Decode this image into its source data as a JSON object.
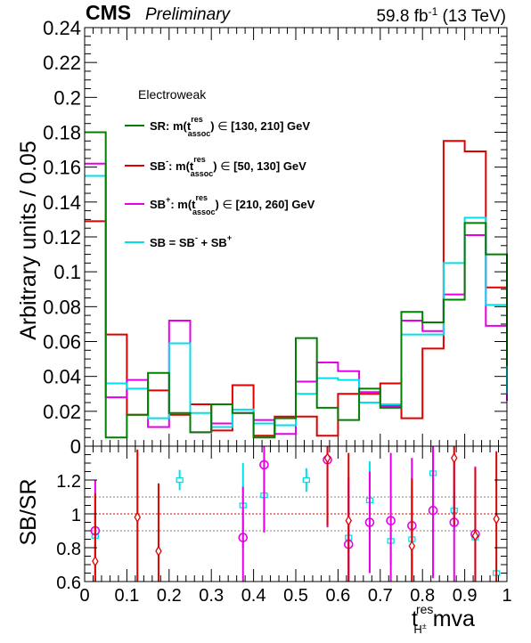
{
  "header": {
    "experiment": "CMS",
    "status": "Preliminary",
    "lumi_prefix": "59.8 fb",
    "lumi_exp": "-1",
    "lumi_suffix": " (13 TeV)"
  },
  "legend": {
    "title": "Electroweak",
    "sr": {
      "a": "SR: m(t",
      "sup": "res",
      "sub": "assoc",
      "b": ") ",
      "in": "∈",
      "c": " [130, 210] GeV"
    },
    "sbm": {
      "a": "SB",
      "asup": "-",
      "b": ": m(t",
      "sup": "res",
      "sub": "assoc",
      "c": ") ",
      "in": "∈",
      "d": " [50, 130] GeV"
    },
    "sbp": {
      "a": "SB",
      "asup": "+",
      "b": ": m(t",
      "sup": "res",
      "sub": "assoc",
      "c": ") ",
      "in": "∈",
      "d": " [210, 260] GeV"
    },
    "sb": {
      "a": "SB = SB",
      "asup": "-",
      "b": " + SB",
      "bsup": "+"
    }
  },
  "colors": {
    "SR": "#008000",
    "SBm": "#e00000",
    "SBp": "#e600e6",
    "SB": "#00e0e8"
  },
  "chart_data": [
    {
      "type": "line",
      "drawstyle": "steps",
      "ylabel": "Arbitrary units / 0.05",
      "xlim": [
        0,
        1
      ],
      "ylim": [
        0,
        0.24
      ],
      "yticks": [
        "0",
        "0.02",
        "0.04",
        "0.06",
        "0.08",
        "0.1",
        "0.12",
        "0.14",
        "0.16",
        "0.18",
        "0.2",
        "0.22",
        "0.24"
      ],
      "bin_edges": [
        0,
        0.05,
        0.1,
        0.15,
        0.2,
        0.25,
        0.3,
        0.35,
        0.4,
        0.45,
        0.5,
        0.55,
        0.6,
        0.65,
        0.7,
        0.75,
        0.8,
        0.85,
        0.9,
        0.95,
        1.0
      ],
      "series": [
        {
          "name": "SR",
          "values": [
            0.18,
            0.005,
            0.018,
            0.042,
            0.019,
            0.008,
            0.024,
            0.019,
            0.005,
            0.016,
            0.062,
            0.022,
            0.015,
            0.033,
            0.022,
            0.077,
            0.071,
            0.084,
            0.128,
            0.11,
            0.046
          ]
        },
        {
          "name": "SB-",
          "values": [
            0.129,
            0.064,
            0.018,
            0.032,
            0.018,
            0.024,
            0.009,
            0.035,
            0.006,
            0.017,
            0.017,
            0.006,
            0.03,
            0.03,
            0.036,
            0.016,
            0.056,
            0.175,
            0.169,
            0.091,
            0.045
          ]
        },
        {
          "name": "SB+",
          "values": [
            0.162,
            0.028,
            0.038,
            0.011,
            0.072,
            0.008,
            0.013,
            0.019,
            0.015,
            0.007,
            0.037,
            0.048,
            0.043,
            0.031,
            0.023,
            0.072,
            0.066,
            0.087,
            0.121,
            0.069,
            0.026
          ]
        },
        {
          "name": "SB = SB- + SB+",
          "values": [
            0.155,
            0.036,
            0.033,
            0.016,
            0.059,
            0.019,
            0.011,
            0.021,
            0.013,
            0.012,
            0.03,
            0.039,
            0.038,
            0.025,
            0.024,
            0.064,
            0.064,
            0.105,
            0.131,
            0.081,
            0.03
          ]
        }
      ]
    },
    {
      "type": "scatter",
      "ylabel": "SB/SR",
      "xlabel": "t_H±^res mva",
      "xlabel_parts": {
        "main": "t",
        "sup": "res",
        "sub": "H",
        "subsup": "±",
        "rest": " mva"
      },
      "xlim": [
        0,
        1
      ],
      "ylim": [
        0.6,
        1.4
      ],
      "xticks": [
        "0",
        "0.1",
        "0.2",
        "0.3",
        "0.4",
        "0.5",
        "0.6",
        "0.7",
        "0.8",
        "0.9",
        "1"
      ],
      "yticks": [
        "0.6",
        "0.8",
        "1",
        "1.2"
      ],
      "reference_lines": [
        0.9,
        1.0,
        1.1
      ],
      "x": [
        0.025,
        0.075,
        0.125,
        0.175,
        0.225,
        0.275,
        0.325,
        0.375,
        0.425,
        0.475,
        0.525,
        0.575,
        0.625,
        0.675,
        0.725,
        0.775,
        0.825,
        0.875,
        0.925,
        0.975
      ],
      "series": [
        {
          "name": "SB",
          "marker": "square-open",
          "values": [
            0.87,
            null,
            null,
            null,
            1.2,
            null,
            null,
            1.05,
            1.11,
            null,
            1.2,
            null,
            0.86,
            1.08,
            0.84,
            0.85,
            1.24,
            1.02,
            0.86,
            0.65
          ],
          "err": [
            0.12,
            0,
            0,
            0,
            0.06,
            0,
            0,
            0.25,
            0.22,
            0,
            0.07,
            0,
            0.3,
            0.23,
            0.14,
            0.3,
            0.2,
            0.12,
            0.3,
            0.08
          ]
        },
        {
          "name": "SB+",
          "marker": "circle-open",
          "values": [
            0.9,
            null,
            null,
            null,
            null,
            null,
            null,
            0.86,
            1.29,
            null,
            null,
            1.32,
            0.82,
            0.95,
            0.96,
            0.93,
            1.02,
            0.95,
            0.88,
            null
          ],
          "err": [
            0.3,
            0,
            0,
            0,
            0,
            0,
            0,
            0.3,
            0.4,
            0,
            0,
            0.4,
            0.4,
            0.3,
            0.4,
            0.4,
            0.4,
            0.4,
            0.4,
            0
          ]
        },
        {
          "name": "SB-",
          "marker": "diamond-open",
          "values": [
            0.72,
            null,
            0.98,
            0.78,
            null,
            null,
            null,
            null,
            null,
            null,
            null,
            1.33,
            0.96,
            null,
            null,
            0.81,
            null,
            1.33,
            0.87,
            0.97
          ],
          "err": [
            0.4,
            0,
            0.4,
            0.4,
            0,
            0,
            0,
            0,
            0,
            0,
            0,
            0.4,
            0.4,
            0,
            0,
            0.4,
            0,
            0.4,
            0.4,
            0.4
          ]
        }
      ]
    }
  ]
}
